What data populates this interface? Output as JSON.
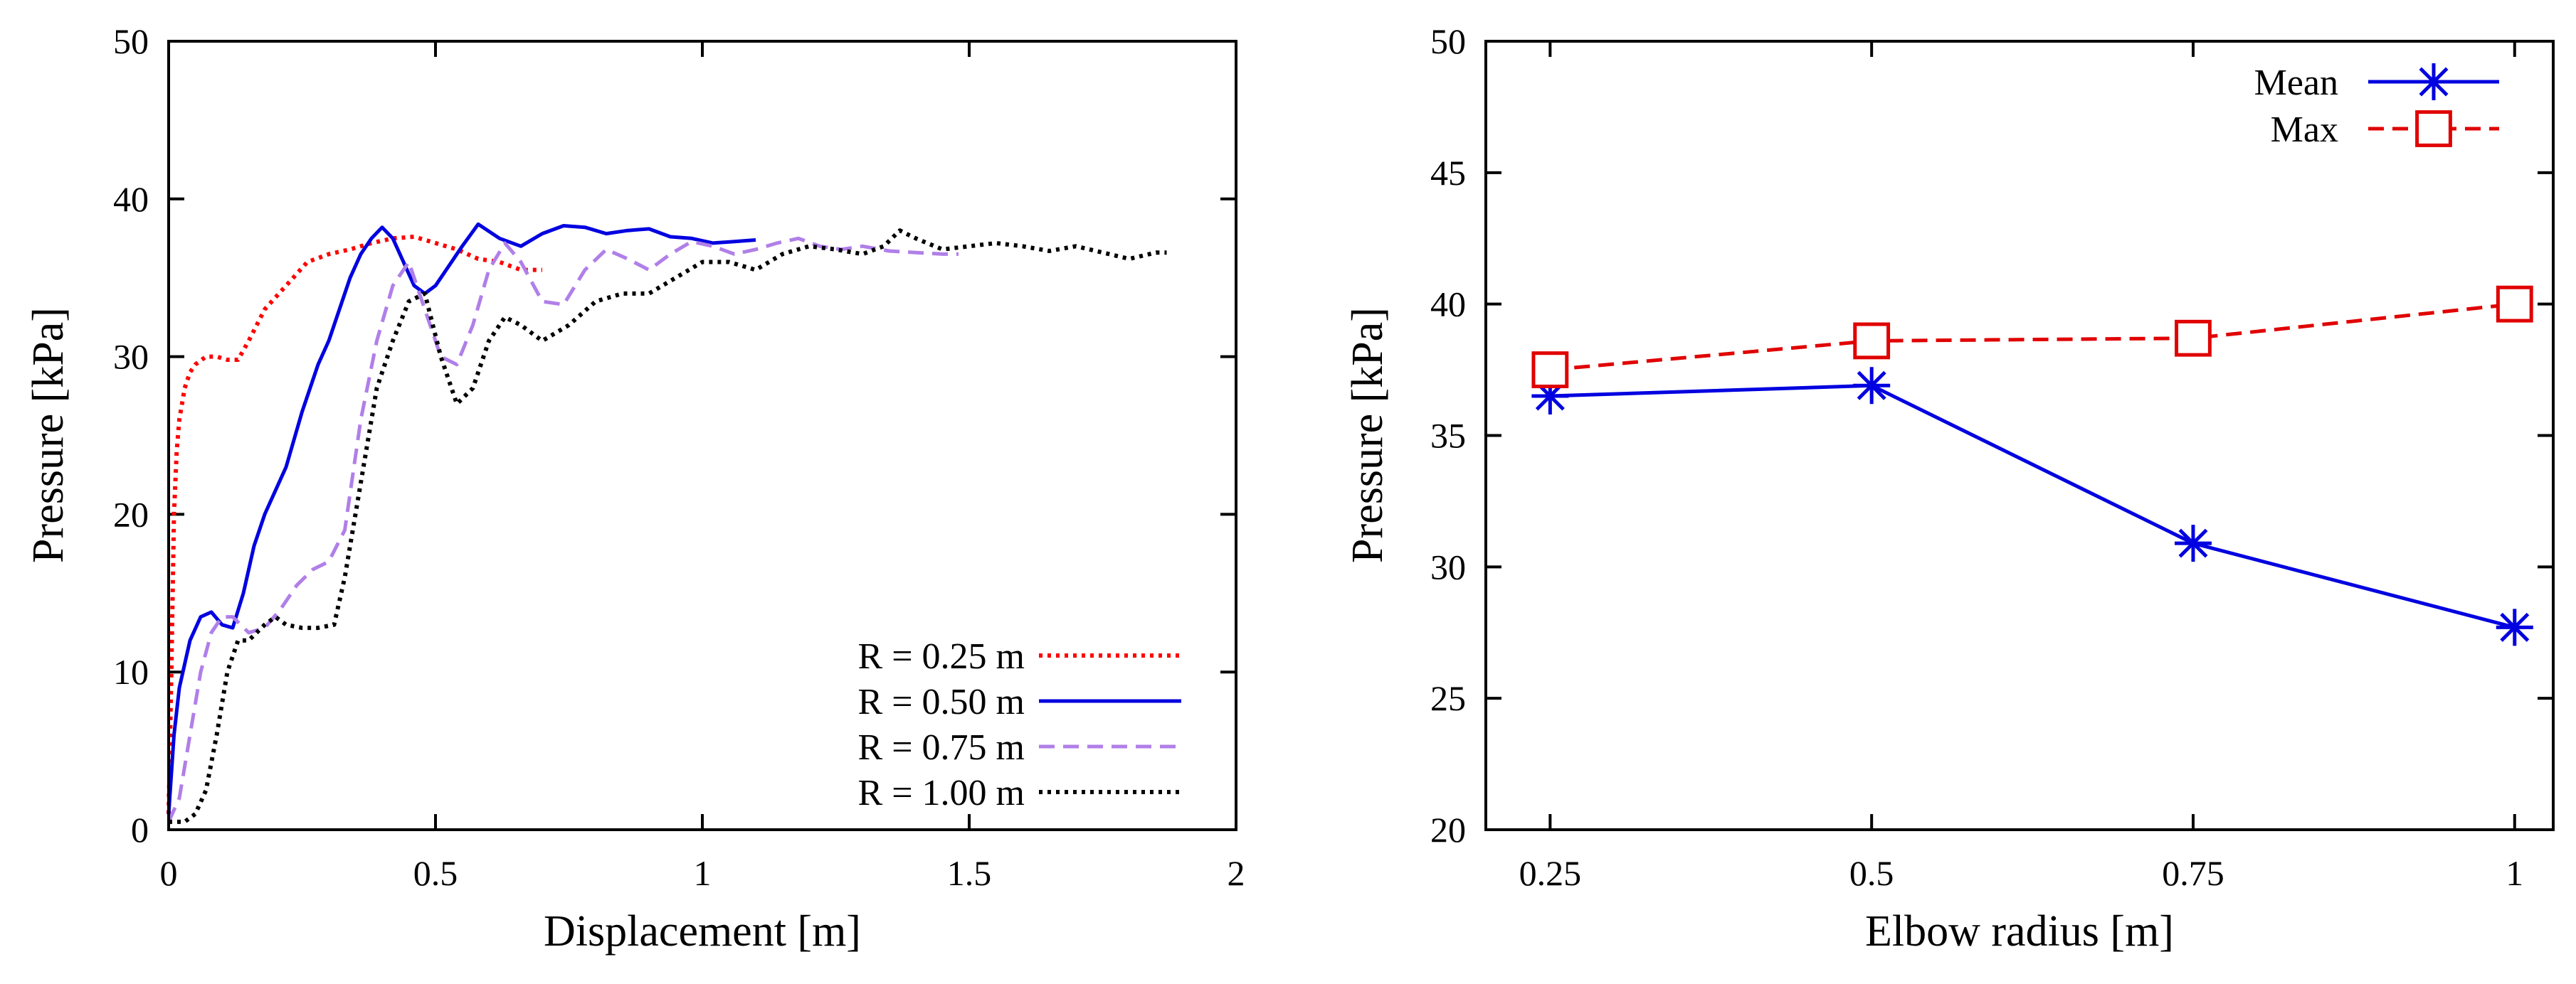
{
  "chart_data": [
    {
      "type": "line",
      "xlabel": "Displacement [m]",
      "ylabel": "Pressure [kPa]",
      "xlim": [
        0,
        2
      ],
      "ylim": [
        0,
        50
      ],
      "xticks": [
        0,
        0.5,
        1,
        1.5,
        2
      ],
      "yticks": [
        0,
        10,
        20,
        30,
        40,
        50
      ],
      "xtick_labels": [
        "0",
        "0.5",
        "1",
        "1.5",
        "2"
      ],
      "ytick_labels": [
        "0",
        "10",
        "20",
        "30",
        "40",
        "50"
      ],
      "legend_position": "bottom-right",
      "series": [
        {
          "name": "R = 0.25 m",
          "color": "#ff0000",
          "dash": "dotted",
          "x": [
            0,
            0.005,
            0.01,
            0.015,
            0.02,
            0.03,
            0.04,
            0.05,
            0.07,
            0.09,
            0.11,
            0.13,
            0.15,
            0.18,
            0.22,
            0.26,
            0.3,
            0.34,
            0.38,
            0.42,
            0.46,
            0.5,
            0.54,
            0.58,
            0.62,
            0.66,
            0.7
          ],
          "y": [
            1,
            10,
            20,
            24,
            26,
            28,
            29,
            29.5,
            30,
            30,
            29.8,
            29.8,
            31,
            33,
            34.5,
            36,
            36.5,
            36.8,
            37.2,
            37.5,
            37.6,
            37.2,
            36.8,
            36.2,
            36,
            35.5,
            35.5
          ]
        },
        {
          "name": "R = 0.50 m",
          "color": "#0000e0",
          "dash": "solid",
          "x": [
            0,
            0.01,
            0.02,
            0.04,
            0.06,
            0.08,
            0.1,
            0.12,
            0.14,
            0.16,
            0.18,
            0.2,
            0.22,
            0.25,
            0.28,
            0.3,
            0.32,
            0.34,
            0.36,
            0.38,
            0.4,
            0.42,
            0.44,
            0.46,
            0.48,
            0.5,
            0.52,
            0.55,
            0.58,
            0.62,
            0.66,
            0.7,
            0.74,
            0.78,
            0.82,
            0.86,
            0.9,
            0.94,
            0.98,
            1.02,
            1.06,
            1.1
          ],
          "y": [
            1,
            6,
            9,
            12,
            13.5,
            13.8,
            13,
            12.8,
            15,
            18,
            20,
            21.5,
            23,
            26.5,
            29.5,
            31,
            33,
            35,
            36.5,
            37.5,
            38.2,
            37.5,
            36,
            34.5,
            34,
            34.5,
            35.5,
            37,
            38.4,
            37.5,
            37,
            37.8,
            38.3,
            38.2,
            37.8,
            38,
            38.1,
            37.6,
            37.5,
            37.2,
            37.3,
            37.4
          ]
        },
        {
          "name": "R = 0.75 m",
          "color": "#b07fe8",
          "dash": "dashed",
          "x": [
            0,
            0.02,
            0.04,
            0.06,
            0.08,
            0.1,
            0.12,
            0.15,
            0.18,
            0.21,
            0.24,
            0.27,
            0.3,
            0.33,
            0.36,
            0.39,
            0.42,
            0.45,
            0.48,
            0.51,
            0.54,
            0.57,
            0.6,
            0.63,
            0.66,
            0.7,
            0.74,
            0.78,
            0.82,
            0.86,
            0.9,
            0.94,
            0.98,
            1.02,
            1.06,
            1.1,
            1.14,
            1.18,
            1.22,
            1.26,
            1.3,
            1.35,
            1.4,
            1.45,
            1.48
          ],
          "y": [
            0.5,
            2,
            6,
            10,
            12.5,
            13.5,
            13.5,
            12.5,
            12.8,
            14,
            15.5,
            16.5,
            17,
            19,
            26,
            31,
            34.5,
            36,
            33,
            30,
            29.5,
            32,
            35.5,
            37.2,
            36,
            33.5,
            33.3,
            35.5,
            36.8,
            36.2,
            35.5,
            36.5,
            37.3,
            37,
            36.5,
            36.8,
            37.2,
            37.5,
            37,
            36.8,
            37,
            36.7,
            36.6,
            36.5,
            36.5
          ]
        },
        {
          "name": "R = 1.00 m",
          "color": "#000000",
          "dash": "dotted",
          "x": [
            0,
            0.03,
            0.05,
            0.07,
            0.09,
            0.11,
            0.13,
            0.15,
            0.18,
            0.2,
            0.22,
            0.25,
            0.28,
            0.31,
            0.33,
            0.35,
            0.37,
            0.39,
            0.42,
            0.45,
            0.48,
            0.51,
            0.54,
            0.57,
            0.6,
            0.63,
            0.66,
            0.7,
            0.75,
            0.8,
            0.85,
            0.9,
            0.95,
            1.0,
            1.05,
            1.1,
            1.15,
            1.2,
            1.25,
            1.3,
            1.34,
            1.37,
            1.4,
            1.45,
            1.5,
            1.55,
            1.6,
            1.65,
            1.7,
            1.75,
            1.8,
            1.85,
            1.87
          ],
          "y": [
            0.5,
            0.5,
            1,
            2.5,
            6,
            10,
            12,
            12,
            13,
            13.5,
            13,
            12.8,
            12.8,
            13,
            16,
            20,
            24,
            28,
            31,
            33.5,
            34,
            30,
            27,
            28,
            31,
            32.5,
            32,
            31,
            32,
            33.5,
            34,
            34,
            35,
            36,
            36,
            35.5,
            36.5,
            37,
            36.8,
            36.5,
            37,
            38,
            37.5,
            36.8,
            37,
            37.2,
            37,
            36.7,
            37,
            36.6,
            36.2,
            36.6,
            36.6
          ]
        }
      ]
    },
    {
      "type": "line",
      "xlabel": "Elbow radius [m]",
      "ylabel": "Pressure [kPa]",
      "xlim": [
        0.2,
        1.03
      ],
      "ylim": [
        20,
        50
      ],
      "xticks": [
        0.25,
        0.5,
        0.75,
        1
      ],
      "yticks": [
        20,
        25,
        30,
        35,
        40,
        45,
        50
      ],
      "xtick_labels": [
        "0.25",
        "0.5",
        "0.75",
        "1"
      ],
      "ytick_labels": [
        "20",
        "25",
        "30",
        "35",
        "40",
        "45",
        "50"
      ],
      "legend_position": "top-right",
      "categories": [
        0.25,
        0.5,
        0.75,
        1
      ],
      "series": [
        {
          "name": "Mean",
          "color": "#0000e0",
          "dash": "solid",
          "marker": "asterisk",
          "values": [
            36.5,
            36.9,
            30.9,
            27.7
          ]
        },
        {
          "name": "Max",
          "color": "#e00000",
          "dash": "dashed",
          "marker": "square",
          "values": [
            37.5,
            38.6,
            38.7,
            40
          ]
        }
      ]
    }
  ]
}
